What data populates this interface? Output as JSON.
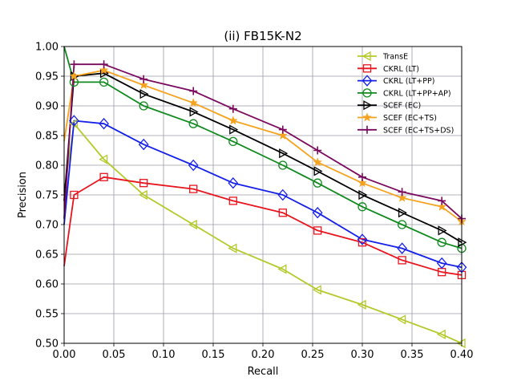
{
  "chart_data": {
    "type": "line",
    "title": "(ii) FB15K-N2",
    "xlabel": "Recall",
    "ylabel": "Precision",
    "xlim": [
      0.0,
      0.4
    ],
    "ylim": [
      0.5,
      1.0
    ],
    "xticks": [
      "0.00",
      "0.05",
      "0.10",
      "0.15",
      "0.20",
      "0.25",
      "0.30",
      "0.35",
      "0.40"
    ],
    "yticks": [
      "0.50",
      "0.55",
      "0.60",
      "0.65",
      "0.70",
      "0.75",
      "0.80",
      "0.85",
      "0.90",
      "0.95",
      "1.00"
    ],
    "grid": true,
    "legend_position": "top-right",
    "series": [
      {
        "name": "TransE",
        "color": "#b5c92a",
        "marker": "triangle-left",
        "x": [
          0.0,
          0.01,
          0.04,
          0.08,
          0.13,
          0.17,
          0.22,
          0.255,
          0.3,
          0.34,
          0.38,
          0.4
        ],
        "y": [
          0.755,
          0.87,
          0.81,
          0.75,
          0.7,
          0.66,
          0.625,
          0.59,
          0.565,
          0.54,
          0.515,
          0.5
        ]
      },
      {
        "name": "CKRL (LT)",
        "color": "#e8141e",
        "marker": "square",
        "x": [
          0.0,
          0.01,
          0.04,
          0.08,
          0.13,
          0.17,
          0.22,
          0.255,
          0.3,
          0.34,
          0.38,
          0.4
        ],
        "y": [
          0.63,
          0.75,
          0.78,
          0.77,
          0.76,
          0.74,
          0.72,
          0.69,
          0.67,
          0.64,
          0.62,
          0.615
        ]
      },
      {
        "name": "CKRL (LT+PP)",
        "color": "#1420e8",
        "marker": "diamond",
        "x": [
          0.0,
          0.01,
          0.04,
          0.08,
          0.13,
          0.17,
          0.22,
          0.255,
          0.3,
          0.34,
          0.38,
          0.4
        ],
        "y": [
          0.7,
          0.875,
          0.87,
          0.835,
          0.8,
          0.77,
          0.75,
          0.72,
          0.675,
          0.66,
          0.635,
          0.628
        ]
      },
      {
        "name": "CKRL (LT+PP+AP)",
        "color": "#108a1e",
        "marker": "circle",
        "x": [
          0.0,
          0.01,
          0.04,
          0.08,
          0.13,
          0.17,
          0.22,
          0.255,
          0.3,
          0.34,
          0.38,
          0.4
        ],
        "y": [
          1.0,
          0.94,
          0.94,
          0.9,
          0.87,
          0.84,
          0.8,
          0.77,
          0.73,
          0.7,
          0.67,
          0.66
        ]
      },
      {
        "name": "SCEF (EC)",
        "color": "#000000",
        "marker": "triangle-right",
        "x": [
          0.0,
          0.01,
          0.04,
          0.08,
          0.13,
          0.17,
          0.22,
          0.255,
          0.3,
          0.34,
          0.38,
          0.4
        ],
        "y": [
          0.74,
          0.95,
          0.955,
          0.92,
          0.89,
          0.86,
          0.82,
          0.79,
          0.75,
          0.72,
          0.69,
          0.67
        ]
      },
      {
        "name": "SCEF (EC+TS)",
        "color": "#f5a31e",
        "marker": "star",
        "x": [
          0.0,
          0.01,
          0.04,
          0.08,
          0.13,
          0.17,
          0.22,
          0.255,
          0.3,
          0.34,
          0.38,
          0.4
        ],
        "y": [
          0.84,
          0.95,
          0.96,
          0.935,
          0.905,
          0.875,
          0.85,
          0.805,
          0.77,
          0.745,
          0.73,
          0.705
        ]
      },
      {
        "name": "SCEF (EC+TS+DS)",
        "color": "#7a0a5e",
        "marker": "plus",
        "x": [
          0.0,
          0.01,
          0.04,
          0.08,
          0.13,
          0.17,
          0.22,
          0.255,
          0.3,
          0.34,
          0.38,
          0.4
        ],
        "y": [
          0.71,
          0.97,
          0.97,
          0.945,
          0.925,
          0.895,
          0.86,
          0.825,
          0.78,
          0.755,
          0.74,
          0.71
        ]
      }
    ]
  }
}
